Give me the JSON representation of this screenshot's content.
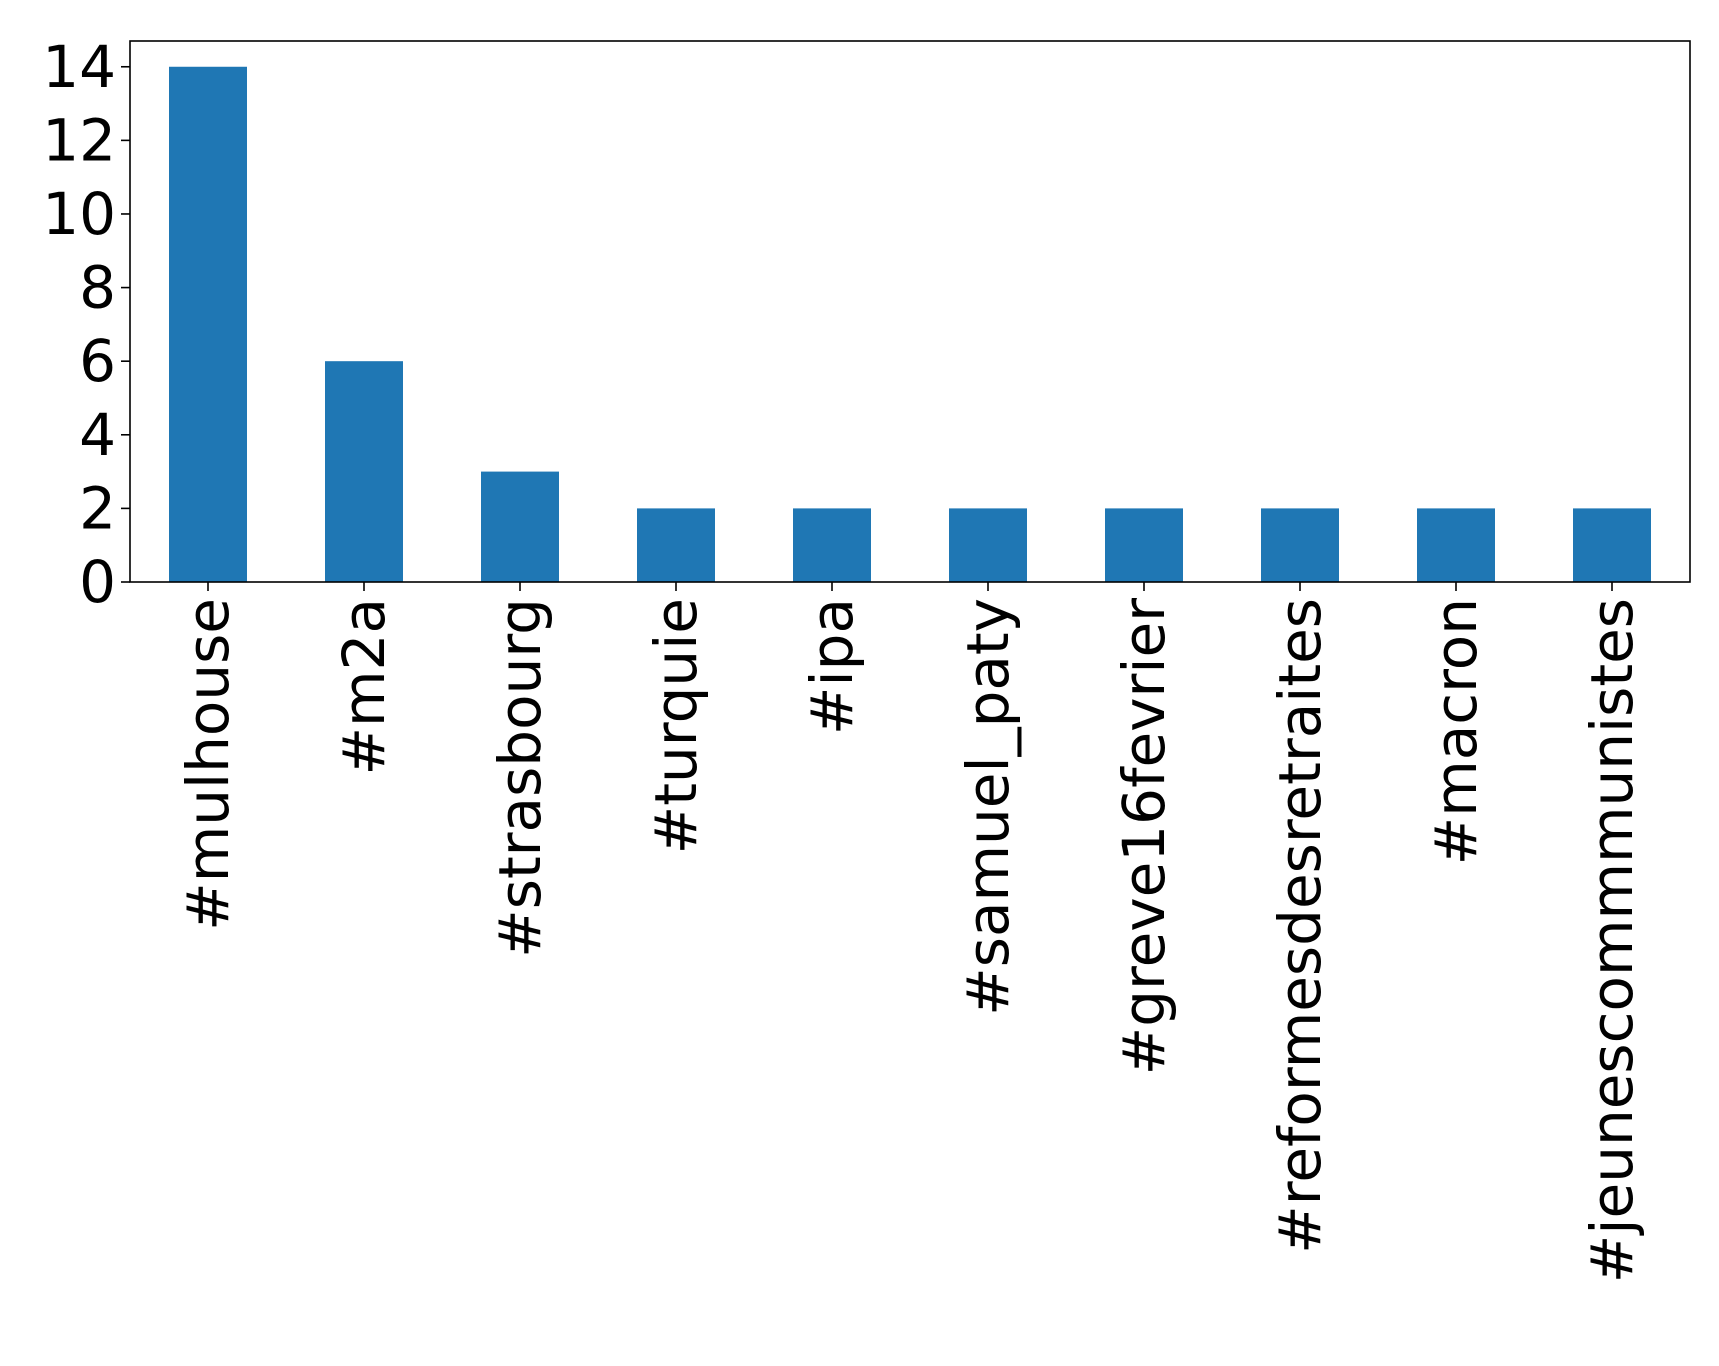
{
  "chart_data": {
    "type": "bar",
    "title": "",
    "xlabel": "",
    "ylabel": "",
    "categories": [
      "#mulhouse",
      "#m2a",
      "#strasbourg",
      "#turquie",
      "#ipa",
      "#samuel_paty",
      "#greve16fevrier",
      "#reformesdesretraites",
      "#macron",
      "#jeunescommmunistes"
    ],
    "values": [
      14,
      6,
      3,
      2,
      2,
      2,
      2,
      2,
      2,
      2
    ],
    "ylim": [
      0,
      14.7
    ],
    "yticks": [
      0,
      2,
      4,
      6,
      8,
      10,
      12,
      14
    ],
    "bar_color": "#1f77b4",
    "grid": false,
    "legend": "none"
  }
}
